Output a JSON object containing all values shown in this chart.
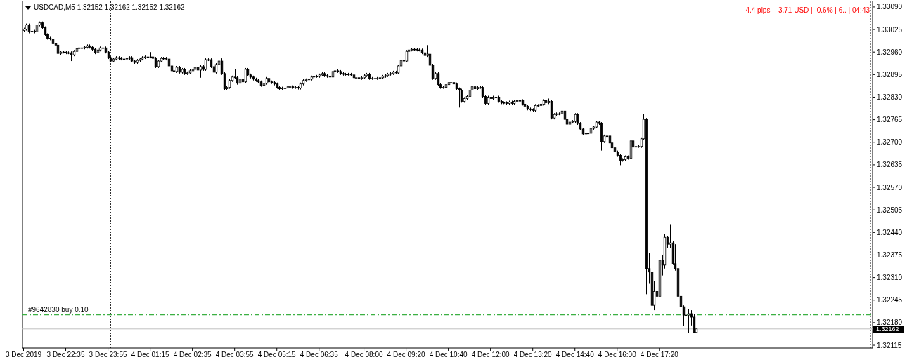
{
  "chart_data": {
    "type": "candlestick",
    "title": "USDCAD,M5 1.32152 1.32162 1.32152 1.32162",
    "annotations": [
      "-4.4 pips | -3.71 USD | -0.6% | 6.. | 04:43"
    ],
    "color": "#000000",
    "grid": false,
    "xlim": [
      "2019-12-03T21:13",
      "2019-12-05T00:04"
    ],
    "xticks": [
      {
        "value": "2019-12-03T21:15",
        "label": "3 Dec 2019"
      },
      {
        "value": "2019-12-03T22:35",
        "label": "3 Dec 22:35"
      },
      {
        "value": "2019-12-03T23:55",
        "label": "3 Dec 23:55"
      },
      {
        "value": "2019-12-04T01:15",
        "label": "4 Dec 01:15"
      },
      {
        "value": "2019-12-04T02:35",
        "label": "4 Dec 02:35"
      },
      {
        "value": "2019-12-04T03:55",
        "label": "4 Dec 03:55"
      },
      {
        "value": "2019-12-04T05:15",
        "label": "4 Dec 05:15"
      },
      {
        "value": "2019-12-04T06:35",
        "label": "4 Dec 06:35"
      },
      {
        "value": "2019-12-04T08:00",
        "label": "4 Dec 08:00"
      },
      {
        "value": "2019-12-04T09:20",
        "label": "4 Dec 09:20"
      },
      {
        "value": "2019-12-04T10:40",
        "label": "4 Dec 10:40"
      },
      {
        "value": "2019-12-04T12:00",
        "label": "4 Dec 12:00"
      },
      {
        "value": "2019-12-04T13:20",
        "label": "4 Dec 13:20"
      },
      {
        "value": "2019-12-04T14:40",
        "label": "4 Dec 14:40"
      },
      {
        "value": "2019-12-04T16:00",
        "label": "4 Dec 16:00"
      },
      {
        "value": "2019-12-04T17:20",
        "label": "4 Dec 17:20"
      }
    ],
    "ylim": [
      1.32107,
      1.33106
    ],
    "yticks": [
      {
        "value": 1.3309,
        "label": "1.33090"
      },
      1.33025,
      {
        "value": 1.3296,
        "label": "1.32960"
      },
      1.32895,
      {
        "value": 1.3283,
        "label": "1.32830"
      },
      1.32765,
      {
        "value": 1.327,
        "label": "1.32700"
      },
      1.32635,
      {
        "value": 1.3257,
        "label": "1.32570"
      },
      1.32505,
      {
        "value": 1.3244,
        "label": "1.32440"
      },
      1.32375,
      {
        "value": 1.3231,
        "label": "1.32310"
      },
      1.32245,
      {
        "value": 1.3218,
        "label": "1.32180"
      },
      1.32115
    ],
    "ref_lines": [
      {
        "axis": "x",
        "value": "2019-12-04T00:00",
        "color": "#000000",
        "line_style": "dotted"
      },
      {
        "axis": "x",
        "value": "2019-12-05T00:00",
        "color": "#000000",
        "line_style": "dotted"
      },
      {
        "axis": "y",
        "value": 1.32203,
        "label": "#9642830 buy 0.10",
        "color": "#3cb043",
        "line_style": "dashed"
      },
      {
        "axis": "y",
        "value": 1.32162,
        "label": "1.32162",
        "color": "#c0c0c0",
        "line_style": "solid"
      }
    ],
    "x": [
      "2019-12-03T21:15",
      "2019-12-03T21:20",
      "2019-12-03T21:25",
      "2019-12-03T21:30",
      "2019-12-03T21:35",
      "2019-12-03T21:40",
      "2019-12-03T21:45",
      "2019-12-03T21:50",
      "2019-12-03T21:55",
      "2019-12-03T22:00",
      "2019-12-03T22:05",
      "2019-12-03T22:10",
      "2019-12-03T22:15",
      "2019-12-03T22:20",
      "2019-12-03T22:25",
      "2019-12-03T22:30",
      "2019-12-03T22:35",
      "2019-12-03T22:40",
      "2019-12-03T22:45",
      "2019-12-03T22:50",
      "2019-12-03T22:55",
      "2019-12-03T23:00",
      "2019-12-03T23:05",
      "2019-12-03T23:10",
      "2019-12-03T23:15",
      "2019-12-03T23:20",
      "2019-12-03T23:25",
      "2019-12-03T23:30",
      "2019-12-03T23:35",
      "2019-12-03T23:40",
      "2019-12-03T23:45",
      "2019-12-03T23:50",
      "2019-12-03T23:55",
      "2019-12-04T00:00",
      "2019-12-04T00:05",
      "2019-12-04T00:10",
      "2019-12-04T00:15",
      "2019-12-04T00:20",
      "2019-12-04T00:25",
      "2019-12-04T00:30",
      "2019-12-04T00:35",
      "2019-12-04T00:40",
      "2019-12-04T00:45",
      "2019-12-04T00:50",
      "2019-12-04T00:55",
      "2019-12-04T01:00",
      "2019-12-04T01:05",
      "2019-12-04T01:10",
      "2019-12-04T01:15",
      "2019-12-04T01:20",
      "2019-12-04T01:25",
      "2019-12-04T01:30",
      "2019-12-04T01:35",
      "2019-12-04T01:40",
      "2019-12-04T01:45",
      "2019-12-04T01:50",
      "2019-12-04T01:55",
      "2019-12-04T02:00",
      "2019-12-04T02:05",
      "2019-12-04T02:10",
      "2019-12-04T02:15",
      "2019-12-04T02:20",
      "2019-12-04T02:25",
      "2019-12-04T02:30",
      "2019-12-04T02:35",
      "2019-12-04T02:40",
      "2019-12-04T02:45",
      "2019-12-04T02:50",
      "2019-12-04T02:55",
      "2019-12-04T03:00",
      "2019-12-04T03:05",
      "2019-12-04T03:10",
      "2019-12-04T03:15",
      "2019-12-04T03:20",
      "2019-12-04T03:25",
      "2019-12-04T03:30",
      "2019-12-04T03:35",
      "2019-12-04T03:40",
      "2019-12-04T03:45",
      "2019-12-04T03:50",
      "2019-12-04T03:55",
      "2019-12-04T04:00",
      "2019-12-04T04:05",
      "2019-12-04T04:10",
      "2019-12-04T04:15",
      "2019-12-04T04:20",
      "2019-12-04T04:25",
      "2019-12-04T04:30",
      "2019-12-04T04:35",
      "2019-12-04T04:40",
      "2019-12-04T04:45",
      "2019-12-04T04:50",
      "2019-12-04T04:55",
      "2019-12-04T05:00",
      "2019-12-04T05:05",
      "2019-12-04T05:10",
      "2019-12-04T05:15",
      "2019-12-04T05:20",
      "2019-12-04T05:25",
      "2019-12-04T05:30",
      "2019-12-04T05:35",
      "2019-12-04T05:40",
      "2019-12-04T05:45",
      "2019-12-04T05:50",
      "2019-12-04T05:55",
      "2019-12-04T06:00",
      "2019-12-04T06:05",
      "2019-12-04T06:10",
      "2019-12-04T06:15",
      "2019-12-04T06:20",
      "2019-12-04T06:25",
      "2019-12-04T06:30",
      "2019-12-04T06:35",
      "2019-12-04T06:40",
      "2019-12-04T06:45",
      "2019-12-04T06:50",
      "2019-12-04T06:55",
      "2019-12-04T07:00",
      "2019-12-04T07:05",
      "2019-12-04T07:10",
      "2019-12-04T07:15",
      "2019-12-04T07:20",
      "2019-12-04T07:25",
      "2019-12-04T07:30",
      "2019-12-04T07:35",
      "2019-12-04T07:40",
      "2019-12-04T07:45",
      "2019-12-04T07:50",
      "2019-12-04T07:55",
      "2019-12-04T08:00",
      "2019-12-04T08:05",
      "2019-12-04T08:10",
      "2019-12-04T08:15",
      "2019-12-04T08:20",
      "2019-12-04T08:25",
      "2019-12-04T08:30",
      "2019-12-04T08:35",
      "2019-12-04T08:40",
      "2019-12-04T08:45",
      "2019-12-04T08:50",
      "2019-12-04T08:55",
      "2019-12-04T09:00",
      "2019-12-04T09:05",
      "2019-12-04T09:10",
      "2019-12-04T09:15",
      "2019-12-04T09:20",
      "2019-12-04T09:25",
      "2019-12-04T09:30",
      "2019-12-04T09:35",
      "2019-12-04T09:40",
      "2019-12-04T09:45",
      "2019-12-04T09:50",
      "2019-12-04T09:55",
      "2019-12-04T10:00",
      "2019-12-04T10:05",
      "2019-12-04T10:10",
      "2019-12-04T10:15",
      "2019-12-04T10:20",
      "2019-12-04T10:25",
      "2019-12-04T10:30",
      "2019-12-04T10:35",
      "2019-12-04T10:40",
      "2019-12-04T10:45",
      "2019-12-04T10:50",
      "2019-12-04T10:55",
      "2019-12-04T11:00",
      "2019-12-04T11:05",
      "2019-12-04T11:10",
      "2019-12-04T11:15",
      "2019-12-04T11:20",
      "2019-12-04T11:25",
      "2019-12-04T11:30",
      "2019-12-04T11:35",
      "2019-12-04T11:40",
      "2019-12-04T11:45",
      "2019-12-04T11:50",
      "2019-12-04T11:55",
      "2019-12-04T12:00",
      "2019-12-04T12:05",
      "2019-12-04T12:10",
      "2019-12-04T12:15",
      "2019-12-04T12:20",
      "2019-12-04T12:25",
      "2019-12-04T12:30",
      "2019-12-04T12:35",
      "2019-12-04T12:40",
      "2019-12-04T12:45",
      "2019-12-04T12:50",
      "2019-12-04T12:55",
      "2019-12-04T13:00",
      "2019-12-04T13:05",
      "2019-12-04T13:10",
      "2019-12-04T13:15",
      "2019-12-04T13:20",
      "2019-12-04T13:25",
      "2019-12-04T13:30",
      "2019-12-04T13:35",
      "2019-12-04T13:40",
      "2019-12-04T13:45",
      "2019-12-04T13:50",
      "2019-12-04T13:55",
      "2019-12-04T14:00",
      "2019-12-04T14:05",
      "2019-12-04T14:10",
      "2019-12-04T14:15",
      "2019-12-04T14:20",
      "2019-12-04T14:25",
      "2019-12-04T14:30",
      "2019-12-04T14:35",
      "2019-12-04T14:40",
      "2019-12-04T14:45",
      "2019-12-04T14:50",
      "2019-12-04T14:55",
      "2019-12-04T15:00",
      "2019-12-04T15:05",
      "2019-12-04T15:10",
      "2019-12-04T15:15",
      "2019-12-04T15:20",
      "2019-12-04T15:25",
      "2019-12-04T15:30",
      "2019-12-04T15:35",
      "2019-12-04T15:40",
      "2019-12-04T15:45",
      "2019-12-04T15:50",
      "2019-12-04T15:55",
      "2019-12-04T16:00",
      "2019-12-04T16:05",
      "2019-12-04T16:10",
      "2019-12-04T16:15",
      "2019-12-04T16:20",
      "2019-12-04T16:25",
      "2019-12-04T16:30",
      "2019-12-04T16:35",
      "2019-12-04T16:40",
      "2019-12-04T16:45",
      "2019-12-04T16:50",
      "2019-12-04T16:55",
      "2019-12-04T17:00",
      "2019-12-04T17:05",
      "2019-12-04T17:10",
      "2019-12-04T17:15",
      "2019-12-04T17:20",
      "2019-12-04T17:25",
      "2019-12-04T17:30",
      "2019-12-04T17:35",
      "2019-12-04T17:40",
      "2019-12-04T17:45",
      "2019-12-04T17:50",
      "2019-12-04T17:55",
      "2019-12-04T18:00",
      "2019-12-04T18:05",
      "2019-12-04T18:10",
      "2019-12-04T18:15",
      "2019-12-04T18:20",
      "2019-12-04T18:25",
      "2019-12-04T18:30"
    ],
    "ohlc": [
      [
        1.33022,
        1.3303,
        1.33018,
        1.33026
      ],
      [
        1.33026,
        1.33042,
        1.33022,
        1.33038
      ],
      [
        1.33038,
        1.33042,
        1.33014,
        1.33018
      ],
      [
        1.33018,
        1.33024,
        1.33014,
        1.3302
      ],
      [
        1.3302,
        1.33024,
        1.33014,
        1.33018
      ],
      [
        1.33018,
        1.33042,
        1.33014,
        1.33038
      ],
      [
        1.33038,
        1.33048,
        1.33034,
        1.33044
      ],
      [
        1.33044,
        1.33048,
        1.33026,
        1.3303
      ],
      [
        1.3303,
        1.33034,
        1.33006,
        1.3301
      ],
      [
        1.3301,
        1.33014,
        1.32996,
        1.33
      ],
      [
        1.33,
        1.33004,
        1.32994,
        1.32998
      ],
      [
        1.32998,
        1.33002,
        1.3298,
        1.32984
      ],
      [
        1.32984,
        1.32988,
        1.32976,
        1.3298
      ],
      [
        1.3298,
        1.32984,
        1.32952,
        1.32956
      ],
      [
        1.32956,
        1.32964,
        1.32952,
        1.3296
      ],
      [
        1.3296,
        1.32964,
        1.32956,
        1.3296
      ],
      [
        1.3296,
        1.32964,
        1.32954,
        1.32958
      ],
      [
        1.32958,
        1.32962,
        1.32954,
        1.32958
      ],
      [
        1.32958,
        1.32962,
        1.32934,
        1.32952
      ],
      [
        1.32952,
        1.32966,
        1.32948,
        1.32962
      ],
      [
        1.32962,
        1.32974,
        1.32958,
        1.3297
      ],
      [
        1.3297,
        1.32976,
        1.32966,
        1.32972
      ],
      [
        1.32972,
        1.32976,
        1.32968,
        1.32972
      ],
      [
        1.32972,
        1.32978,
        1.32968,
        1.32974
      ],
      [
        1.32974,
        1.32982,
        1.3297,
        1.32978
      ],
      [
        1.32978,
        1.32982,
        1.3297,
        1.32974
      ],
      [
        1.32974,
        1.32978,
        1.32964,
        1.32968
      ],
      [
        1.32968,
        1.32972,
        1.32954,
        1.32958
      ],
      [
        1.32958,
        1.3297,
        1.32954,
        1.32966
      ],
      [
        1.32966,
        1.32976,
        1.32962,
        1.32972
      ],
      [
        1.32972,
        1.32976,
        1.32968,
        1.32972
      ],
      [
        1.32972,
        1.32976,
        1.32956,
        1.3296
      ],
      [
        1.3296,
        1.32964,
        1.3294,
        1.32944
      ],
      [
        1.32944,
        1.32948,
        1.3293,
        1.32934
      ],
      [
        1.32934,
        1.32944,
        1.3293,
        1.3294
      ],
      [
        1.3294,
        1.32948,
        1.32936,
        1.32944
      ],
      [
        1.32944,
        1.32948,
        1.32938,
        1.32942
      ],
      [
        1.32942,
        1.32946,
        1.32936,
        1.3294
      ],
      [
        1.3294,
        1.32944,
        1.32936,
        1.3294
      ],
      [
        1.3294,
        1.32946,
        1.32936,
        1.32942
      ],
      [
        1.32942,
        1.32948,
        1.32938,
        1.32944
      ],
      [
        1.32944,
        1.32948,
        1.3293,
        1.32934
      ],
      [
        1.32934,
        1.32938,
        1.32926,
        1.3293
      ],
      [
        1.3293,
        1.3294,
        1.32926,
        1.32936
      ],
      [
        1.32936,
        1.32944,
        1.32932,
        1.3294
      ],
      [
        1.3294,
        1.32948,
        1.32936,
        1.32944
      ],
      [
        1.32944,
        1.3295,
        1.3294,
        1.32946
      ],
      [
        1.32946,
        1.3295,
        1.32942,
        1.32946
      ],
      [
        1.32946,
        1.3296,
        1.32942,
        1.32946
      ],
      [
        1.32946,
        1.3295,
        1.32938,
        1.32942
      ],
      [
        1.32942,
        1.32946,
        1.32914,
        1.32918
      ],
      [
        1.32918,
        1.32938,
        1.32914,
        1.32934
      ],
      [
        1.32934,
        1.32946,
        1.3293,
        1.32942
      ],
      [
        1.32942,
        1.32946,
        1.32938,
        1.32942
      ],
      [
        1.32942,
        1.32946,
        1.32936,
        1.3294
      ],
      [
        1.3294,
        1.32944,
        1.32916,
        1.3292
      ],
      [
        1.3292,
        1.32924,
        1.32902,
        1.32906
      ],
      [
        1.32906,
        1.3291,
        1.329,
        1.32904
      ],
      [
        1.32904,
        1.3292,
        1.329,
        1.32916
      ],
      [
        1.32916,
        1.3292,
        1.32898,
        1.32902
      ],
      [
        1.32902,
        1.32914,
        1.32898,
        1.3291
      ],
      [
        1.3291,
        1.32914,
        1.32894,
        1.32898
      ],
      [
        1.32898,
        1.32904,
        1.32894,
        1.329
      ],
      [
        1.329,
        1.3291,
        1.32896,
        1.32906
      ],
      [
        1.32906,
        1.32914,
        1.32902,
        1.3291
      ],
      [
        1.3291,
        1.3292,
        1.32906,
        1.32916
      ],
      [
        1.32916,
        1.3292,
        1.32886,
        1.32908
      ],
      [
        1.32908,
        1.32922,
        1.32886,
        1.32918
      ],
      [
        1.32918,
        1.32922,
        1.32906,
        1.3291
      ],
      [
        1.3291,
        1.32942,
        1.32906,
        1.32938
      ],
      [
        1.32938,
        1.32942,
        1.32934,
        1.32938
      ],
      [
        1.32938,
        1.32942,
        1.32914,
        1.32918
      ],
      [
        1.32918,
        1.32922,
        1.32898,
        1.32902
      ],
      [
        1.32902,
        1.32928,
        1.32898,
        1.32924
      ],
      [
        1.32924,
        1.32938,
        1.3292,
        1.32934
      ],
      [
        1.32934,
        1.32942,
        1.32894,
        1.32898
      ],
      [
        1.32898,
        1.32902,
        1.3285,
        1.32854
      ],
      [
        1.32854,
        1.32862,
        1.3285,
        1.32858
      ],
      [
        1.32858,
        1.32882,
        1.32854,
        1.32878
      ],
      [
        1.32878,
        1.32892,
        1.32874,
        1.32888
      ],
      [
        1.32888,
        1.3291,
        1.32882,
        1.32886
      ],
      [
        1.32886,
        1.3289,
        1.32866,
        1.3287
      ],
      [
        1.3287,
        1.32886,
        1.32866,
        1.32882
      ],
      [
        1.32882,
        1.32886,
        1.3287,
        1.32874
      ],
      [
        1.32874,
        1.32914,
        1.3287,
        1.3291
      ],
      [
        1.3291,
        1.32914,
        1.3289,
        1.32894
      ],
      [
        1.32894,
        1.32898,
        1.32884,
        1.32888
      ],
      [
        1.32888,
        1.32892,
        1.32878,
        1.32882
      ],
      [
        1.32882,
        1.32886,
        1.32874,
        1.32878
      ],
      [
        1.32878,
        1.32882,
        1.3287,
        1.32874
      ],
      [
        1.32874,
        1.32878,
        1.3286,
        1.32864
      ],
      [
        1.32864,
        1.32874,
        1.3286,
        1.3287
      ],
      [
        1.3287,
        1.32888,
        1.32866,
        1.32884
      ],
      [
        1.32884,
        1.32888,
        1.3287,
        1.32874
      ],
      [
        1.32874,
        1.32878,
        1.32868,
        1.32872
      ],
      [
        1.32872,
        1.32876,
        1.32864,
        1.32868
      ],
      [
        1.32868,
        1.32872,
        1.32854,
        1.32858
      ],
      [
        1.32858,
        1.32862,
        1.3285,
        1.32854
      ],
      [
        1.32854,
        1.3286,
        1.3285,
        1.32856
      ],
      [
        1.32856,
        1.3286,
        1.32852,
        1.32856
      ],
      [
        1.32856,
        1.32864,
        1.32852,
        1.3286
      ],
      [
        1.3286,
        1.32864,
        1.32856,
        1.3286
      ],
      [
        1.3286,
        1.32864,
        1.32854,
        1.32858
      ],
      [
        1.32858,
        1.32862,
        1.32854,
        1.32858
      ],
      [
        1.32858,
        1.32862,
        1.32852,
        1.32856
      ],
      [
        1.32856,
        1.32872,
        1.32852,
        1.32868
      ],
      [
        1.32868,
        1.32882,
        1.32864,
        1.32878
      ],
      [
        1.32878,
        1.32884,
        1.32874,
        1.3288
      ],
      [
        1.3288,
        1.32886,
        1.32876,
        1.32882
      ],
      [
        1.32882,
        1.32892,
        1.32878,
        1.32888
      ],
      [
        1.32888,
        1.32894,
        1.32884,
        1.3289
      ],
      [
        1.3289,
        1.32894,
        1.32886,
        1.3289
      ],
      [
        1.3289,
        1.32898,
        1.32886,
        1.32894
      ],
      [
        1.32894,
        1.32902,
        1.3289,
        1.32898
      ],
      [
        1.32898,
        1.32902,
        1.32888,
        1.32892
      ],
      [
        1.32892,
        1.32896,
        1.32886,
        1.3289
      ],
      [
        1.3289,
        1.32894,
        1.32884,
        1.32888
      ],
      [
        1.32888,
        1.32908,
        1.32884,
        1.32904
      ],
      [
        1.32904,
        1.3291,
        1.329,
        1.32906
      ],
      [
        1.32906,
        1.3291,
        1.329,
        1.32904
      ],
      [
        1.32904,
        1.32908,
        1.32894,
        1.32898
      ],
      [
        1.32898,
        1.32902,
        1.32892,
        1.32896
      ],
      [
        1.32896,
        1.329,
        1.32892,
        1.32896
      ],
      [
        1.32896,
        1.329,
        1.32892,
        1.32896
      ],
      [
        1.32896,
        1.329,
        1.3289,
        1.32894
      ],
      [
        1.32894,
        1.32898,
        1.32882,
        1.32886
      ],
      [
        1.32886,
        1.3289,
        1.32882,
        1.32886
      ],
      [
        1.32886,
        1.3289,
        1.3288,
        1.32884
      ],
      [
        1.32884,
        1.3289,
        1.3288,
        1.32886
      ],
      [
        1.32886,
        1.32896,
        1.32882,
        1.32892
      ],
      [
        1.32892,
        1.329,
        1.32888,
        1.32896
      ],
      [
        1.32896,
        1.329,
        1.3288,
        1.32884
      ],
      [
        1.32884,
        1.32888,
        1.3288,
        1.32884
      ],
      [
        1.32884,
        1.32888,
        1.3288,
        1.32884
      ],
      [
        1.32884,
        1.32888,
        1.3288,
        1.32884
      ],
      [
        1.32884,
        1.3289,
        1.3288,
        1.32886
      ],
      [
        1.32886,
        1.32894,
        1.32882,
        1.3289
      ],
      [
        1.3289,
        1.32896,
        1.32886,
        1.32892
      ],
      [
        1.32892,
        1.329,
        1.32888,
        1.32896
      ],
      [
        1.32896,
        1.32902,
        1.32892,
        1.32898
      ],
      [
        1.32898,
        1.32906,
        1.32894,
        1.32902
      ],
      [
        1.32902,
        1.32906,
        1.32896,
        1.329
      ],
      [
        1.329,
        1.32924,
        1.32896,
        1.3292
      ],
      [
        1.3292,
        1.3294,
        1.32916,
        1.32936
      ],
      [
        1.32936,
        1.3294,
        1.3293,
        1.32934
      ],
      [
        1.32934,
        1.32966,
        1.3293,
        1.32962
      ],
      [
        1.32962,
        1.3297,
        1.32958,
        1.32966
      ],
      [
        1.32966,
        1.32972,
        1.32962,
        1.32968
      ],
      [
        1.32968,
        1.32972,
        1.32964,
        1.32968
      ],
      [
        1.32968,
        1.32972,
        1.32962,
        1.32966
      ],
      [
        1.32966,
        1.3297,
        1.32962,
        1.32966
      ],
      [
        1.32966,
        1.3297,
        1.32954,
        1.32958
      ],
      [
        1.32958,
        1.32962,
        1.32946,
        1.3295
      ],
      [
        1.3295,
        1.3298,
        1.32946,
        1.32954
      ],
      [
        1.32954,
        1.32958,
        1.32918,
        1.32922
      ],
      [
        1.32922,
        1.32926,
        1.3288,
        1.32884
      ],
      [
        1.32884,
        1.32902,
        1.3288,
        1.32898
      ],
      [
        1.32898,
        1.32902,
        1.32862,
        1.32866
      ],
      [
        1.32866,
        1.3287,
        1.32854,
        1.32858
      ],
      [
        1.32858,
        1.32862,
        1.32854,
        1.32858
      ],
      [
        1.32858,
        1.3287,
        1.32854,
        1.32866
      ],
      [
        1.32866,
        1.32876,
        1.32862,
        1.32872
      ],
      [
        1.32872,
        1.32876,
        1.32868,
        1.32872
      ],
      [
        1.32872,
        1.32876,
        1.32864,
        1.32868
      ],
      [
        1.32868,
        1.32872,
        1.3285,
        1.32854
      ],
      [
        1.32854,
        1.32858,
        1.328,
        1.3285
      ],
      [
        1.3285,
        1.32854,
        1.32814,
        1.32818
      ],
      [
        1.32818,
        1.3283,
        1.32814,
        1.32826
      ],
      [
        1.32826,
        1.32836,
        1.32822,
        1.32832
      ],
      [
        1.32832,
        1.32854,
        1.32828,
        1.3285
      ],
      [
        1.3285,
        1.32864,
        1.32846,
        1.3286
      ],
      [
        1.3286,
        1.32864,
        1.3285,
        1.32854
      ],
      [
        1.32854,
        1.32862,
        1.3285,
        1.32858
      ],
      [
        1.32858,
        1.32862,
        1.32854,
        1.32858
      ],
      [
        1.32858,
        1.32862,
        1.32828,
        1.32832
      ],
      [
        1.32832,
        1.32836,
        1.32808,
        1.32812
      ],
      [
        1.32812,
        1.32834,
        1.32808,
        1.3283
      ],
      [
        1.3283,
        1.32834,
        1.32822,
        1.32826
      ],
      [
        1.32826,
        1.32834,
        1.32822,
        1.3283
      ],
      [
        1.3283,
        1.32834,
        1.32826,
        1.3283
      ],
      [
        1.3283,
        1.32834,
        1.32814,
        1.32818
      ],
      [
        1.32818,
        1.32822,
        1.3281,
        1.32814
      ],
      [
        1.32814,
        1.32818,
        1.3281,
        1.32814
      ],
      [
        1.32814,
        1.32818,
        1.32808,
        1.32812
      ],
      [
        1.32812,
        1.3282,
        1.32808,
        1.32816
      ],
      [
        1.32816,
        1.3282,
        1.32808,
        1.32812
      ],
      [
        1.32812,
        1.32822,
        1.32808,
        1.32818
      ],
      [
        1.32818,
        1.32824,
        1.32814,
        1.3282
      ],
      [
        1.3282,
        1.32824,
        1.32816,
        1.3282
      ],
      [
        1.3282,
        1.32824,
        1.32806,
        1.3281
      ],
      [
        1.3281,
        1.32814,
        1.328,
        1.32804
      ],
      [
        1.32804,
        1.32808,
        1.32792,
        1.32796
      ],
      [
        1.32796,
        1.328,
        1.3279,
        1.32794
      ],
      [
        1.32794,
        1.32798,
        1.32788,
        1.32792
      ],
      [
        1.32792,
        1.3281,
        1.32788,
        1.32806
      ],
      [
        1.32806,
        1.3281,
        1.32802,
        1.32806
      ],
      [
        1.32806,
        1.32814,
        1.32802,
        1.3281
      ],
      [
        1.3281,
        1.32824,
        1.32806,
        1.3282
      ],
      [
        1.3282,
        1.32824,
        1.3281,
        1.32814
      ],
      [
        1.32814,
        1.32826,
        1.3281,
        1.32818
      ],
      [
        1.32818,
        1.32822,
        1.32766,
        1.3277
      ],
      [
        1.3277,
        1.32784,
        1.32766,
        1.3278
      ],
      [
        1.3278,
        1.32786,
        1.32776,
        1.32782
      ],
      [
        1.32782,
        1.32786,
        1.32778,
        1.32782
      ],
      [
        1.32782,
        1.32794,
        1.32778,
        1.3279
      ],
      [
        1.3279,
        1.32794,
        1.32762,
        1.32766
      ],
      [
        1.32766,
        1.3277,
        1.32748,
        1.32752
      ],
      [
        1.32752,
        1.32762,
        1.32748,
        1.32758
      ],
      [
        1.32758,
        1.32764,
        1.32754,
        1.3276
      ],
      [
        1.3276,
        1.32784,
        1.32756,
        1.3278
      ],
      [
        1.3278,
        1.32784,
        1.3275,
        1.32754
      ],
      [
        1.32754,
        1.32758,
        1.32734,
        1.32738
      ],
      [
        1.32738,
        1.32742,
        1.3272,
        1.32724
      ],
      [
        1.32724,
        1.3273,
        1.3272,
        1.32726
      ],
      [
        1.32726,
        1.3273,
        1.32722,
        1.32726
      ],
      [
        1.32726,
        1.32744,
        1.32722,
        1.3274
      ],
      [
        1.3274,
        1.32748,
        1.32736,
        1.32744
      ],
      [
        1.32744,
        1.32762,
        1.3274,
        1.32758
      ],
      [
        1.32758,
        1.32762,
        1.3275,
        1.32754
      ],
      [
        1.32754,
        1.32758,
        1.32676,
        1.32702
      ],
      [
        1.32702,
        1.32722,
        1.32698,
        1.32718
      ],
      [
        1.32718,
        1.32722,
        1.32714,
        1.32718
      ],
      [
        1.32718,
        1.32722,
        1.32694,
        1.32698
      ],
      [
        1.32698,
        1.32702,
        1.3268,
        1.32684
      ],
      [
        1.32684,
        1.32688,
        1.32668,
        1.32672
      ],
      [
        1.32672,
        1.32676,
        1.32658,
        1.32662
      ],
      [
        1.32662,
        1.32666,
        1.32634,
        1.32648
      ],
      [
        1.32648,
        1.32654,
        1.32644,
        1.3265
      ],
      [
        1.3265,
        1.32662,
        1.32646,
        1.32658
      ],
      [
        1.32658,
        1.32662,
        1.3265,
        1.32654
      ],
      [
        1.32654,
        1.32708,
        1.3265,
        1.32704
      ],
      [
        1.32704,
        1.32708,
        1.32682,
        1.32686
      ],
      [
        1.32686,
        1.32692,
        1.32682,
        1.32688
      ],
      [
        1.32688,
        1.32692,
        1.32684,
        1.32688
      ],
      [
        1.32688,
        1.32714,
        1.32684,
        1.3271
      ],
      [
        1.3271,
        1.32782,
        1.32706,
        1.32766
      ],
      [
        1.32766,
        1.3277,
        1.32262,
        1.32336
      ],
      [
        1.32336,
        1.32382,
        1.32292,
        1.32326
      ],
      [
        1.32326,
        1.32382,
        1.32196,
        1.3223
      ],
      [
        1.3223,
        1.323,
        1.32216,
        1.3227
      ],
      [
        1.3227,
        1.32286,
        1.32226,
        1.32256
      ],
      [
        1.32256,
        1.324,
        1.32246,
        1.3236
      ],
      [
        1.3236,
        1.32376,
        1.32316,
        1.32346
      ],
      [
        1.32346,
        1.32436,
        1.32336,
        1.32426
      ],
      [
        1.32426,
        1.3243,
        1.32396,
        1.32406
      ],
      [
        1.32406,
        1.32462,
        1.32396,
        1.3241
      ],
      [
        1.3241,
        1.32416,
        1.32346,
        1.3235
      ],
      [
        1.3235,
        1.32406,
        1.3233,
        1.32336
      ],
      [
        1.32336,
        1.32346,
        1.32246,
        1.32256
      ],
      [
        1.32256,
        1.3226,
        1.32216,
        1.32226
      ],
      [
        1.32226,
        1.3223,
        1.3217,
        1.32202
      ],
      [
        1.32202,
        1.32216,
        1.32146,
        1.32202
      ],
      [
        1.32202,
        1.3222,
        1.3215,
        1.32206
      ],
      [
        1.32206,
        1.32216,
        1.32172,
        1.32196
      ],
      [
        1.32196,
        1.32206,
        1.3215,
        1.32152
      ],
      [
        1.32152,
        1.32162,
        1.32152,
        1.32162
      ]
    ]
  }
}
